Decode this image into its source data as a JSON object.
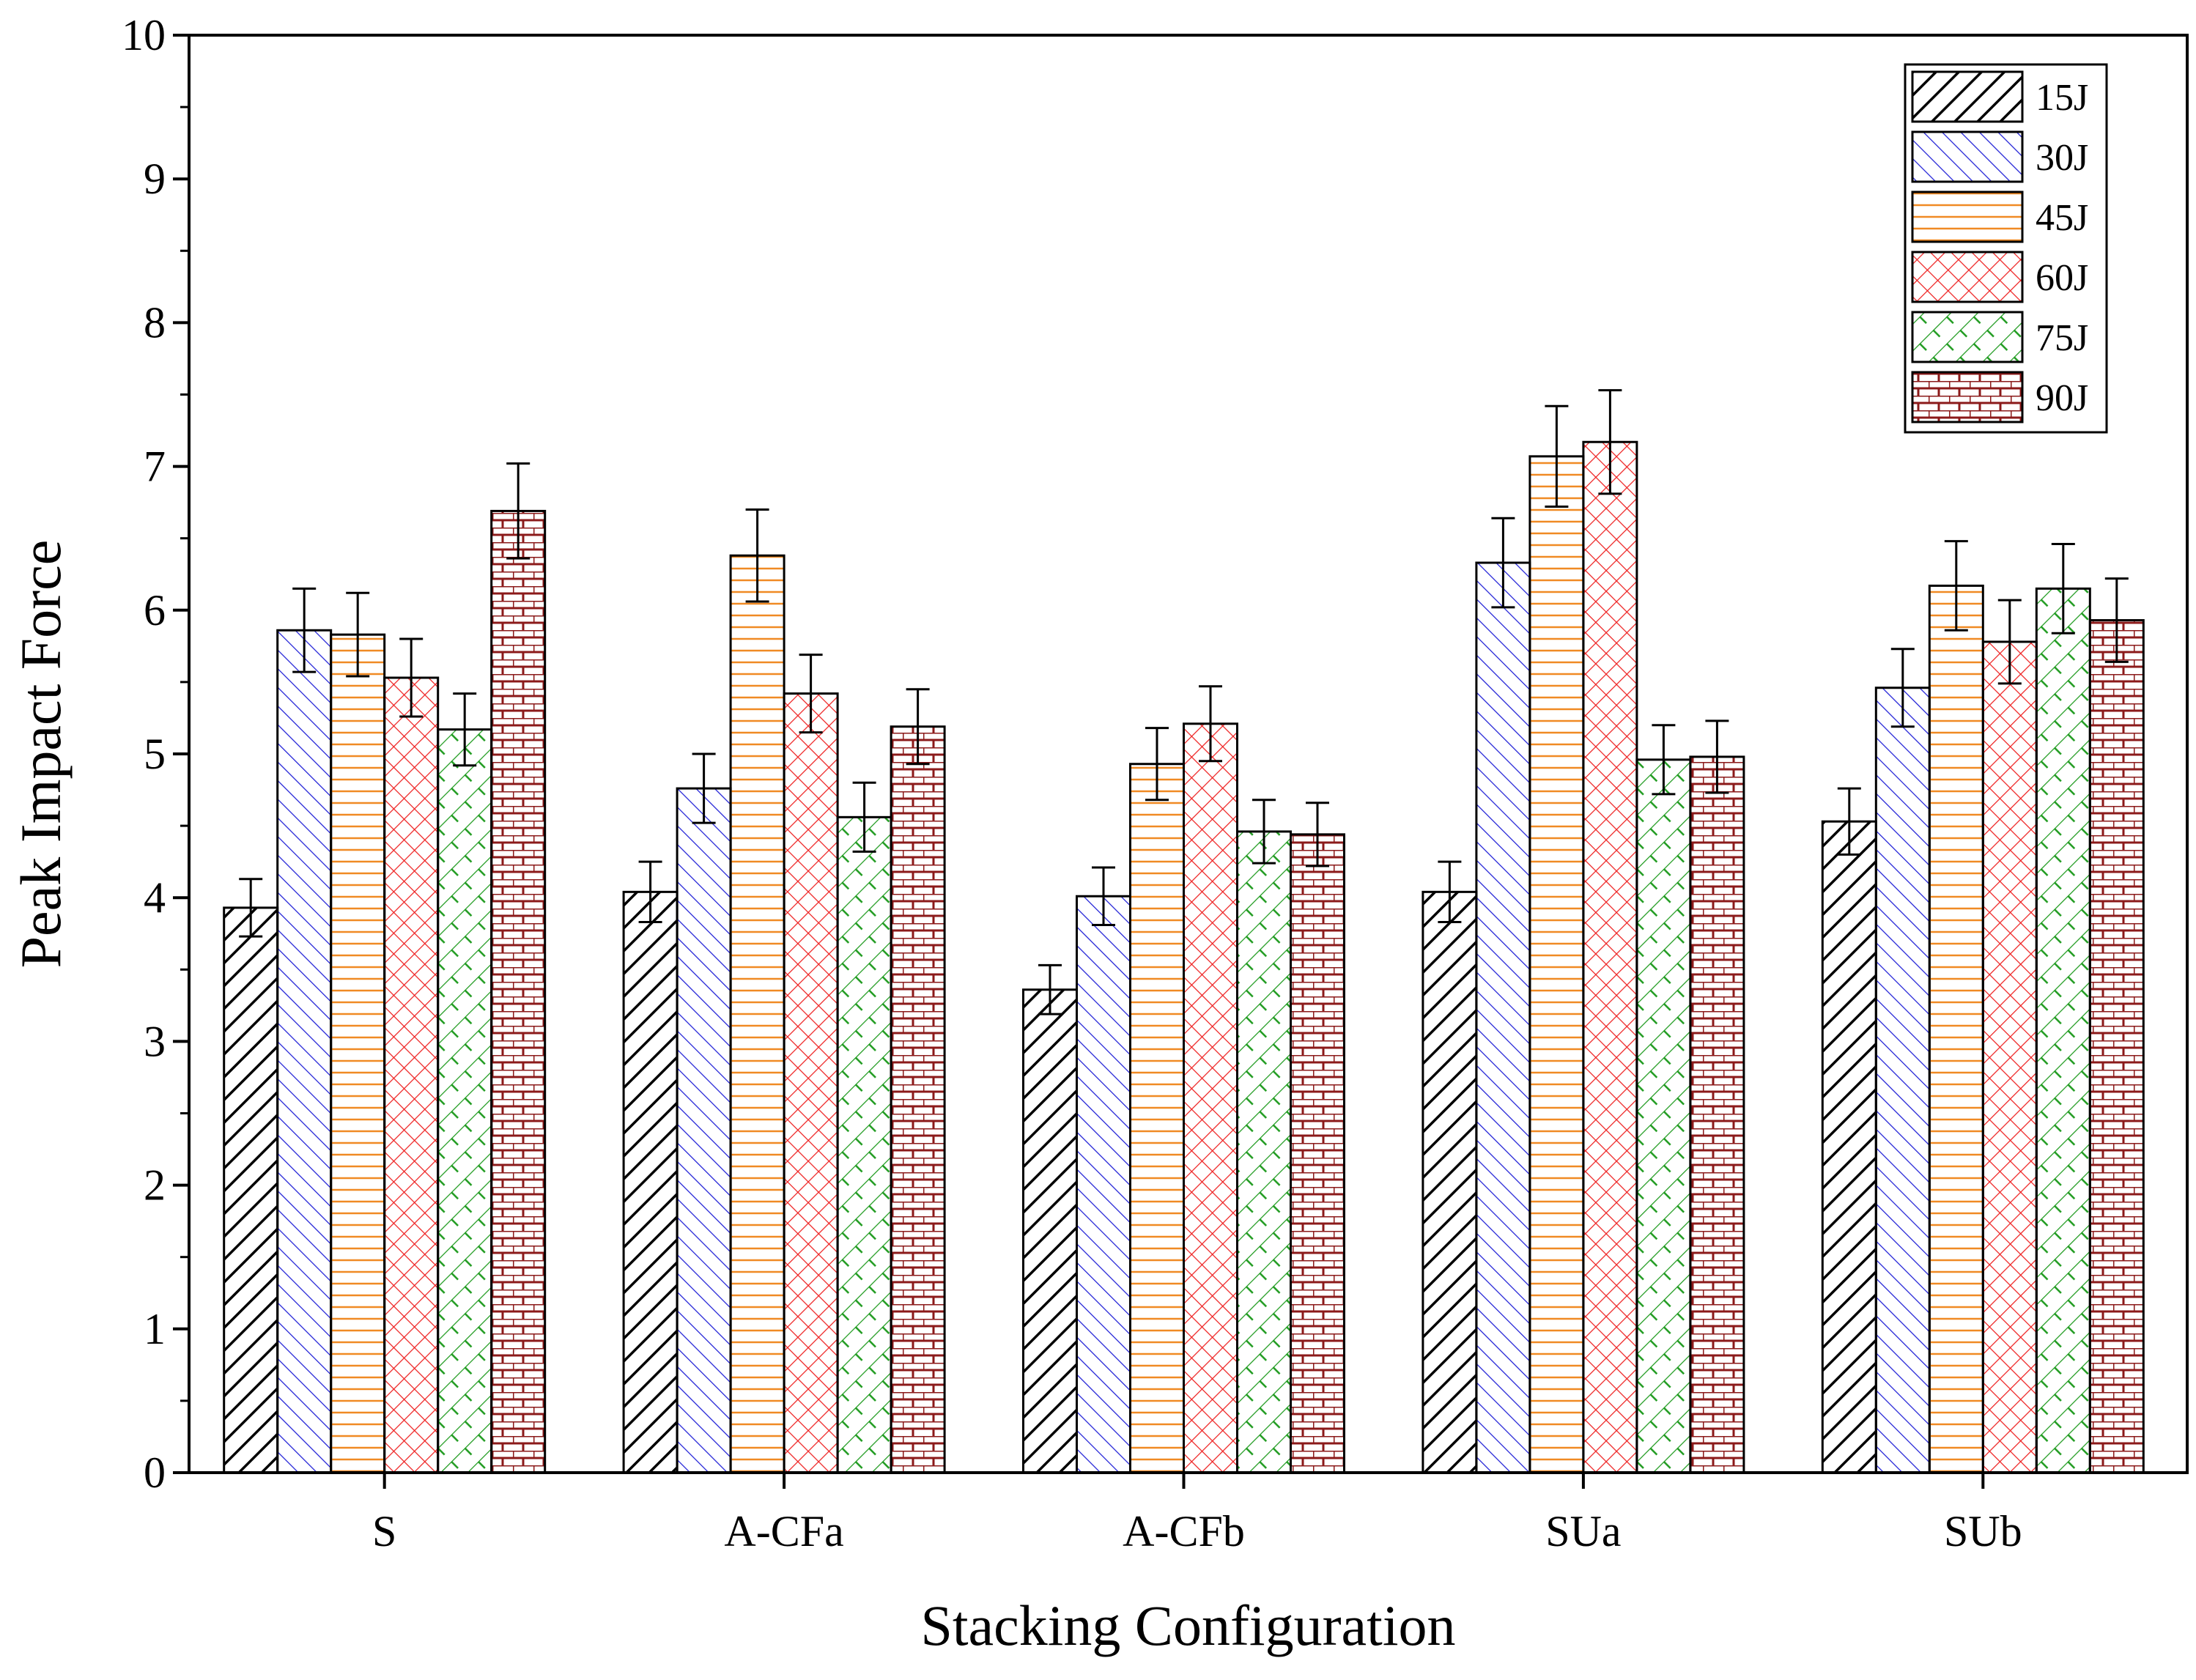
{
  "chart_data": {
    "type": "bar",
    "title": "",
    "xlabel": "Stacking Configuration",
    "ylabel": "Peak Impact Force",
    "ylim": [
      0,
      10
    ],
    "yticks": [
      "0",
      "1",
      "2",
      "3",
      "4",
      "5",
      "6",
      "7",
      "8",
      "9",
      "10"
    ],
    "categories": [
      "S",
      "A-CFa",
      "A-CFb",
      "SUa",
      "SUb"
    ],
    "legend_position": "top-right",
    "series": [
      {
        "name": "15J",
        "color": "#000000",
        "pattern": "diagonal-forward",
        "values": [
          3.93,
          4.04,
          3.36,
          4.04,
          4.53
        ],
        "errors": [
          0.2,
          0.21,
          0.17,
          0.21,
          0.23
        ]
      },
      {
        "name": "30J",
        "color": "#1f1fd6",
        "pattern": "diagonal-backward",
        "values": [
          5.86,
          4.76,
          4.01,
          6.33,
          5.46
        ],
        "errors": [
          0.29,
          0.24,
          0.2,
          0.31,
          0.27
        ]
      },
      {
        "name": "45J",
        "color": "#f08a24",
        "pattern": "horizontal",
        "values": [
          5.83,
          6.38,
          4.93,
          7.07,
          6.17
        ],
        "errors": [
          0.29,
          0.32,
          0.25,
          0.35,
          0.31
        ]
      },
      {
        "name": "60J",
        "color": "#ee2222",
        "pattern": "crosshatch",
        "values": [
          5.53,
          5.42,
          5.21,
          7.17,
          5.78
        ],
        "errors": [
          0.27,
          0.27,
          0.26,
          0.36,
          0.29
        ]
      },
      {
        "name": "75J",
        "color": "#1e9a1e",
        "pattern": "diagonal-crosshatch",
        "values": [
          5.17,
          4.56,
          4.46,
          4.96,
          6.15
        ],
        "errors": [
          0.25,
          0.24,
          0.22,
          0.24,
          0.31
        ]
      },
      {
        "name": "90J",
        "color": "#8b1a1a",
        "pattern": "brick",
        "values": [
          6.69,
          5.19,
          4.44,
          4.98,
          5.93
        ],
        "errors": [
          0.33,
          0.26,
          0.22,
          0.25,
          0.29
        ]
      }
    ]
  }
}
